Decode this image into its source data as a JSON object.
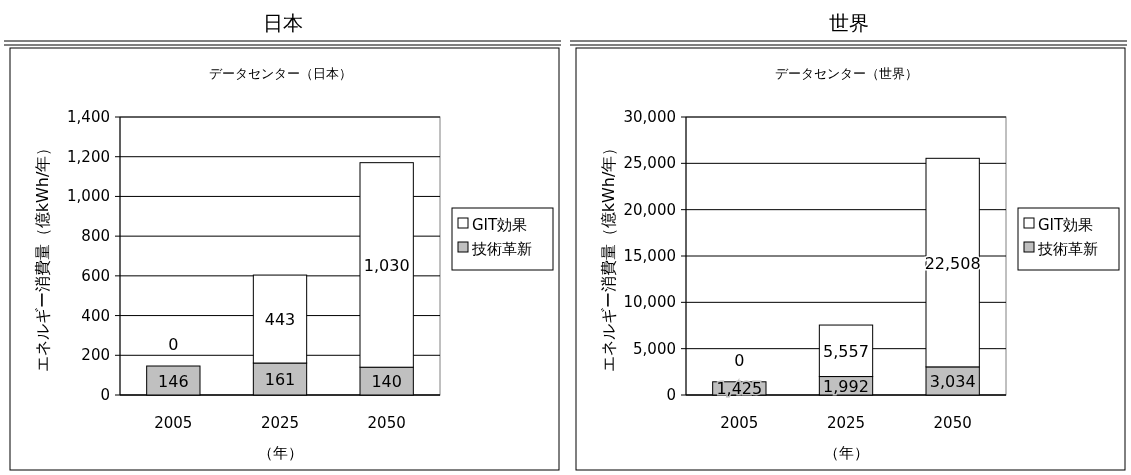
{
  "chart_data": [
    {
      "type": "bar",
      "title": "日本",
      "subtitle": "データセンター（日本）",
      "categories": [
        "2005",
        "2025",
        "2050"
      ],
      "stacked": true,
      "series": [
        {
          "name": "技術革新",
          "color": "#c0c0c0",
          "values": [
            146,
            161,
            140
          ],
          "value_labels": [
            "146",
            "161",
            "140"
          ]
        },
        {
          "name": "GIT効果",
          "color": "#ffffff",
          "values": [
            0,
            443,
            1030
          ],
          "value_labels": [
            "0",
            "443",
            "1,030"
          ]
        }
      ],
      "ylim": [
        0,
        1400
      ],
      "yticks": [
        {
          "value": 0,
          "label": "0"
        },
        {
          "value": 200,
          "label": "200"
        },
        {
          "value": 400,
          "label": "400"
        },
        {
          "value": 600,
          "label": "600"
        },
        {
          "value": 800,
          "label": "800"
        },
        {
          "value": 1000,
          "label": "1,000"
        },
        {
          "value": 1200,
          "label": "1,200"
        },
        {
          "value": 1400,
          "label": "1,400"
        }
      ],
      "xlabel": "（年）",
      "ylabel": "エネルギー消費量（億kWh/年）",
      "grid": "y",
      "legend": "right"
    },
    {
      "type": "bar",
      "title": "世界",
      "subtitle": "データセンター（世界）",
      "categories": [
        "2005",
        "2025",
        "2050"
      ],
      "stacked": true,
      "series": [
        {
          "name": "技術革新",
          "color": "#c0c0c0",
          "values": [
            1425,
            1992,
            3034
          ],
          "value_labels": [
            "1,425",
            "1,992",
            "3,034"
          ]
        },
        {
          "name": "GIT効果",
          "color": "#ffffff",
          "values": [
            0,
            5557,
            22508
          ],
          "value_labels": [
            "0",
            "5,557",
            "22,508"
          ]
        }
      ],
      "ylim": [
        0,
        30000
      ],
      "yticks": [
        {
          "value": 0,
          "label": "0"
        },
        {
          "value": 5000,
          "label": "5,000"
        },
        {
          "value": 10000,
          "label": "10,000"
        },
        {
          "value": 15000,
          "label": "15,000"
        },
        {
          "value": 20000,
          "label": "20,000"
        },
        {
          "value": 25000,
          "label": "25,000"
        },
        {
          "value": 30000,
          "label": "30,000"
        }
      ],
      "xlabel": "（年）",
      "ylabel": "エネルギー消費量（億kWh/年）",
      "grid": "y",
      "legend": "right"
    }
  ]
}
